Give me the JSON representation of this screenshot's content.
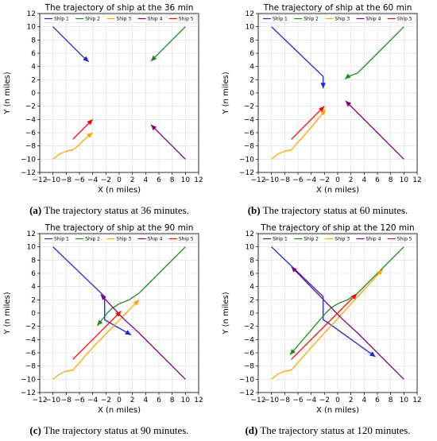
{
  "colors": {
    "ship1": "#1f24d6",
    "ship2": "#1a8a1a",
    "ship3": "#ffa500",
    "ship4": "#800080",
    "ship5": "#ff0000"
  },
  "legend": [
    "Ship 1",
    "Ship 2",
    "Ship 3",
    "Ship 4",
    "Ship 5"
  ],
  "chart_data": [
    {
      "type": "line",
      "title": "The trajectory of ship at the 36 min",
      "xlabel": "X (n miles)",
      "ylabel": "Y (n miles)",
      "xlim": [
        -12,
        12
      ],
      "ylim": [
        -12,
        12
      ],
      "xticks": [
        -12,
        -10,
        -8,
        -6,
        -4,
        -2,
        0,
        2,
        4,
        6,
        8,
        10,
        12
      ],
      "yticks": [
        -12,
        -10,
        -8,
        -6,
        -4,
        -2,
        0,
        2,
        4,
        6,
        8,
        10,
        12
      ],
      "grid": true,
      "legend_position": "top",
      "series": [
        {
          "name": "Ship 1",
          "x": [
            -10,
            -5.8,
            -4.6
          ],
          "y": [
            10,
            5.8,
            4.7
          ]
        },
        {
          "name": "Ship 2",
          "x": [
            10,
            5.8,
            4.8
          ],
          "y": [
            10,
            5.8,
            4.8
          ]
        },
        {
          "name": "Ship 3",
          "x": [
            -10,
            -9,
            -8,
            -7,
            -6,
            -5,
            -4
          ],
          "y": [
            -10,
            -9.2,
            -8.8,
            -8.6,
            -7.8,
            -6.8,
            -6
          ]
        },
        {
          "name": "Ship 4",
          "x": [
            10,
            5.8,
            4.8
          ],
          "y": [
            -10,
            -5.8,
            -4.8
          ]
        },
        {
          "name": "Ship 5",
          "x": [
            -7,
            -4
          ],
          "y": [
            -7,
            -4
          ]
        }
      ],
      "caption": {
        "label": "(a)",
        "text": " The trajectory status at 36 minutes."
      }
    },
    {
      "type": "line",
      "title": "The trajectory of ship at the 60 min",
      "xlabel": "X (n miles)",
      "ylabel": "Y (n miles)",
      "xlim": [
        -12,
        12
      ],
      "ylim": [
        -12,
        12
      ],
      "xticks": [
        -12,
        -10,
        -8,
        -6,
        -4,
        -2,
        0,
        2,
        4,
        6,
        8,
        10,
        12
      ],
      "yticks": [
        -12,
        -10,
        -8,
        -6,
        -4,
        -2,
        0,
        2,
        4,
        6,
        8,
        10,
        12
      ],
      "grid": true,
      "legend_position": "top",
      "series": [
        {
          "name": "Ship 1",
          "x": [
            -10,
            -2.2,
            -2.2
          ],
          "y": [
            10,
            2.5,
            0.7
          ]
        },
        {
          "name": "Ship 2",
          "x": [
            10,
            3,
            1.6,
            1.1
          ],
          "y": [
            10,
            3,
            2.5,
            2.1
          ]
        },
        {
          "name": "Ship 3",
          "x": [
            -10,
            -9,
            -8,
            -7,
            -4,
            -1.8
          ],
          "y": [
            -10,
            -9.2,
            -8.8,
            -8.6,
            -5.2,
            -2.5
          ]
        },
        {
          "name": "Ship 4",
          "x": [
            10,
            3,
            1.2
          ],
          "y": [
            -10,
            -3,
            -1.2
          ]
        },
        {
          "name": "Ship 5",
          "x": [
            -7,
            -2
          ],
          "y": [
            -7,
            -2
          ]
        }
      ],
      "caption": {
        "label": "(b)",
        "text": " The trajectory status at 60 minutes."
      }
    },
    {
      "type": "line",
      "title": "The trajectory of ship at the 90 min",
      "xlabel": "X (n miles)",
      "ylabel": "Y (n miles)",
      "xlim": [
        -12,
        12
      ],
      "ylim": [
        -12,
        12
      ],
      "xticks": [
        -12,
        -10,
        -8,
        -6,
        -4,
        -2,
        0,
        2,
        4,
        6,
        8,
        10,
        12
      ],
      "yticks": [
        -12,
        -10,
        -8,
        -6,
        -4,
        -2,
        0,
        2,
        4,
        6,
        8,
        10,
        12
      ],
      "grid": true,
      "legend_position": "top",
      "series": [
        {
          "name": "Ship 1",
          "x": [
            -10,
            -2.2,
            -2.2,
            -1.7,
            1.8
          ],
          "y": [
            10,
            2.5,
            -1.0,
            -1.3,
            -3.3
          ]
        },
        {
          "name": "Ship 2",
          "x": [
            10,
            3,
            1.5,
            0,
            -1.1,
            -1.8,
            -3.3
          ],
          "y": [
            10,
            3,
            2.0,
            1.4,
            0.7,
            0,
            -1.9
          ]
        },
        {
          "name": "Ship 3",
          "x": [
            -10,
            -9,
            -8,
            -7,
            -4,
            3
          ],
          "y": [
            -10,
            -9.2,
            -8.8,
            -8.6,
            -5.2,
            2
          ]
        },
        {
          "name": "Ship 4",
          "x": [
            10,
            3,
            0.8,
            -0.8,
            -2.8
          ],
          "y": [
            -10,
            -3,
            -1.0,
            0.7,
            2.8
          ]
        },
        {
          "name": "Ship 5",
          "x": [
            -7,
            0.3
          ],
          "y": [
            -7,
            0.3
          ]
        }
      ],
      "caption": {
        "label": "(c)",
        "text": " The trajectory status at 90 minutes."
      }
    },
    {
      "type": "line",
      "title": "The trajectory of ship at the 120 min",
      "xlabel": "X (n miles)",
      "ylabel": "Y (n miles)",
      "xlim": [
        -12,
        12
      ],
      "ylim": [
        -12,
        12
      ],
      "xticks": [
        -12,
        -10,
        -8,
        -6,
        -4,
        -2,
        0,
        2,
        4,
        6,
        8,
        10,
        12
      ],
      "yticks": [
        -12,
        -10,
        -8,
        -6,
        -4,
        -2,
        0,
        2,
        4,
        6,
        8,
        10,
        12
      ],
      "grid": true,
      "legend_position": "top",
      "series": [
        {
          "name": "Ship 1",
          "x": [
            -10,
            -2.2,
            -2.2,
            -1.7,
            5.7
          ],
          "y": [
            10,
            2.5,
            -1.0,
            -1.3,
            -6.6
          ]
        },
        {
          "name": "Ship 2",
          "x": [
            10,
            3,
            1.5,
            0,
            -1.1,
            -1.8,
            -7.2
          ],
          "y": [
            10,
            3,
            2.0,
            1.4,
            0.7,
            0,
            -6.3
          ]
        },
        {
          "name": "Ship 3",
          "x": [
            -10,
            -9,
            -8,
            -7,
            -4,
            6.8
          ],
          "y": [
            -10,
            -9.2,
            -8.8,
            -8.6,
            -5.2,
            6.6
          ]
        },
        {
          "name": "Ship 4",
          "x": [
            10,
            3,
            0.8,
            -7
          ],
          "y": [
            -10,
            -3,
            -1.0,
            7
          ]
        },
        {
          "name": "Ship 5",
          "x": [
            -7,
            2.9
          ],
          "y": [
            -7,
            2.9
          ]
        }
      ],
      "caption": {
        "label": "(d)",
        "text": " The trajectory status at 120 minutes."
      }
    }
  ]
}
